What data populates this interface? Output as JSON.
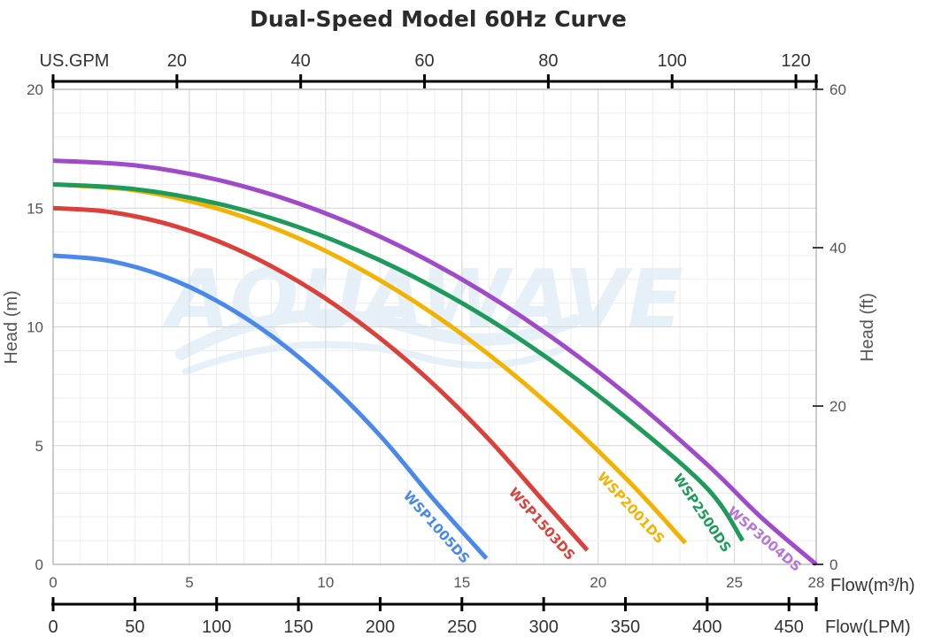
{
  "chart_data": {
    "type": "line",
    "title": "Dual-Speed Model 60Hz Curve",
    "xlabel": "Flow(m³/h)",
    "ylabel": "Head (m)",
    "y2label": "Head (ft)",
    "top_axis_label": "US.GPM",
    "bottom_axis2_label": "Flow(LPM)",
    "xlim": [
      0,
      28
    ],
    "ylim": [
      0,
      20
    ],
    "y2lim": [
      0,
      60
    ],
    "x_ticks": [
      "0",
      "5",
      "10",
      "15",
      "20",
      "25",
      "28"
    ],
    "y_ticks": [
      "0",
      "5",
      "10",
      "15",
      "20"
    ],
    "y2_ticks": [
      "0",
      "20",
      "40",
      "60"
    ],
    "gpm_ticks": [
      "20",
      "40",
      "60",
      "80",
      "100",
      "120"
    ],
    "lpm_ticks": [
      "0",
      "50",
      "100",
      "150",
      "200",
      "250",
      "300",
      "350",
      "400",
      "450"
    ],
    "watermark": "AQUAWAVE",
    "grid": true,
    "series": [
      {
        "name": "WSP1005DS",
        "color": "#4a88ea",
        "shutoff_head": 13,
        "x": [
          0,
          2,
          4,
          6,
          8,
          10,
          12,
          14,
          15.9
        ],
        "y": [
          13.0,
          12.79,
          12.16,
          11.1,
          9.63,
          7.74,
          5.42,
          2.69,
          0.25
        ]
      },
      {
        "name": "WSP1503DS",
        "color": "#d9413a",
        "shutoff_head": 15,
        "x": [
          0,
          2,
          4,
          6,
          8,
          10,
          12,
          14,
          16,
          18,
          19.6
        ],
        "y": [
          15.0,
          14.85,
          14.39,
          13.63,
          12.56,
          11.19,
          9.52,
          7.54,
          5.25,
          2.66,
          0.6
        ]
      },
      {
        "name": "WSP2001DS",
        "color": "#f2b200",
        "shutoff_head": 16,
        "x": [
          0,
          3,
          6,
          9,
          12,
          15,
          18,
          21,
          23.2
        ],
        "y": [
          16.0,
          15.75,
          14.99,
          13.73,
          11.96,
          9.69,
          6.92,
          3.64,
          0.9
        ]
      },
      {
        "name": "WSP2500DS",
        "color": "#1e9a5a",
        "shutoff_head": 16,
        "x": [
          0,
          3,
          6,
          9,
          12,
          15,
          18,
          21,
          24,
          25.3
        ],
        "y": [
          16.0,
          15.8,
          15.2,
          14.2,
          12.8,
          11.0,
          8.8,
          6.2,
          3.2,
          1.0
        ]
      },
      {
        "name": "WSP3004DS",
        "color": "#9e4ac9",
        "shutoff_head": 17,
        "x": [
          0,
          3,
          6,
          9,
          12,
          15,
          18,
          21,
          24,
          26,
          28
        ],
        "y": [
          17.0,
          16.8,
          16.2,
          15.2,
          13.8,
          12.0,
          9.8,
          7.2,
          4.2,
          1.96,
          0.0
        ]
      }
    ]
  }
}
